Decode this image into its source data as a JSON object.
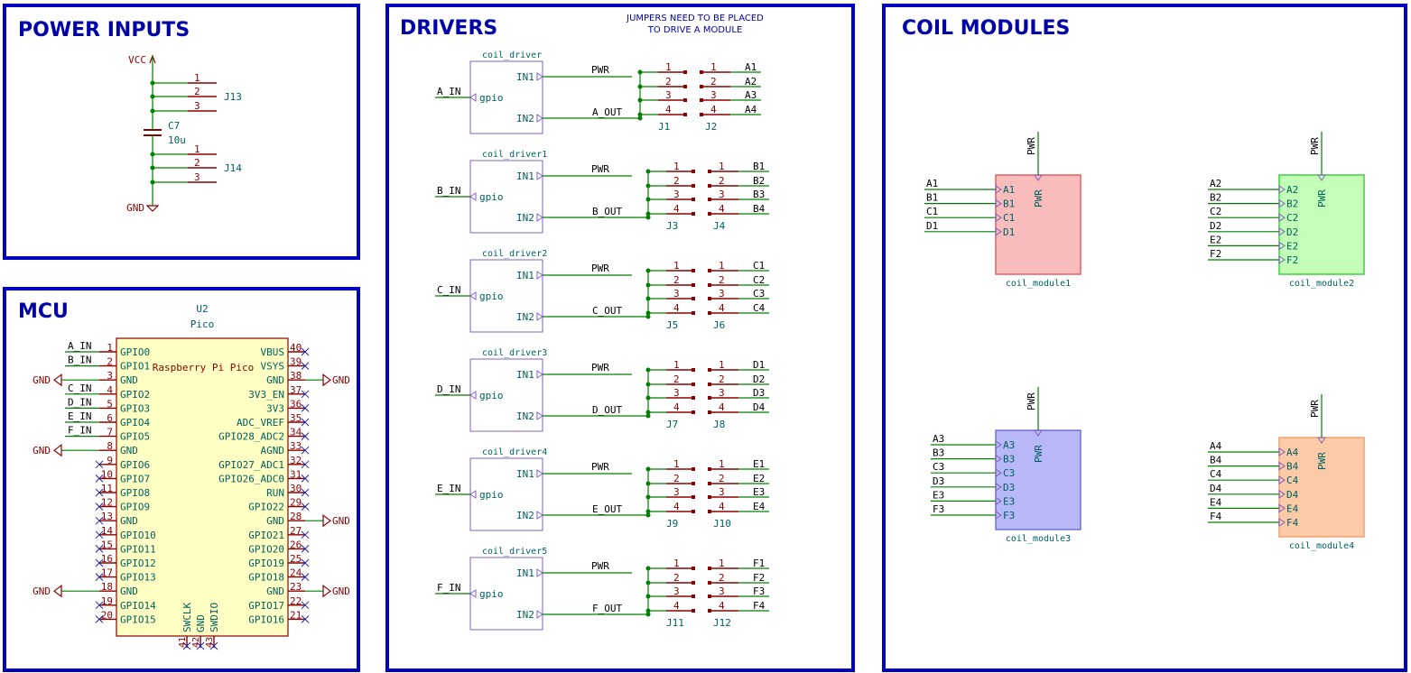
{
  "sections": {
    "power": {
      "title": "POWER INPUTS",
      "vcc": "VCC",
      "gnd": "GND",
      "cap_ref": "C7",
      "cap_val": "10u",
      "j13": "J13",
      "j14": "J14",
      "pins": [
        "1",
        "2",
        "3"
      ]
    },
    "mcu": {
      "title": "MCU",
      "ref": "U2",
      "value": "Pico",
      "part": "Raspberry Pi Pico",
      "gnd": "GND",
      "left_pins": [
        {
          "num": "1",
          "name": "GPIO0",
          "net": "A_IN"
        },
        {
          "num": "2",
          "name": "GPIO1",
          "net": "B_IN"
        },
        {
          "num": "3",
          "name": "GND",
          "net": "GND"
        },
        {
          "num": "4",
          "name": "GPIO2",
          "net": "C_IN"
        },
        {
          "num": "5",
          "name": "GPIO3",
          "net": "D_IN"
        },
        {
          "num": "6",
          "name": "GPIO4",
          "net": "E_IN"
        },
        {
          "num": "7",
          "name": "GPIO5",
          "net": "F_IN"
        },
        {
          "num": "8",
          "name": "GND",
          "net": "GND"
        },
        {
          "num": "9",
          "name": "GPIO6",
          "net": ""
        },
        {
          "num": "10",
          "name": "GPIO7",
          "net": ""
        },
        {
          "num": "11",
          "name": "GPIO8",
          "net": ""
        },
        {
          "num": "12",
          "name": "GPIO9",
          "net": ""
        },
        {
          "num": "13",
          "name": "GND",
          "net": ""
        },
        {
          "num": "14",
          "name": "GPIO10",
          "net": ""
        },
        {
          "num": "15",
          "name": "GPIO11",
          "net": ""
        },
        {
          "num": "16",
          "name": "GPIO12",
          "net": ""
        },
        {
          "num": "17",
          "name": "GPIO13",
          "net": ""
        },
        {
          "num": "18",
          "name": "GND",
          "net": "GND"
        },
        {
          "num": "19",
          "name": "GPIO14",
          "net": ""
        },
        {
          "num": "20",
          "name": "GPIO15",
          "net": ""
        }
      ],
      "right_pins": [
        {
          "num": "40",
          "name": "VBUS",
          "net": ""
        },
        {
          "num": "39",
          "name": "VSYS",
          "net": ""
        },
        {
          "num": "38",
          "name": "GND",
          "net": "GND"
        },
        {
          "num": "37",
          "name": "3V3_EN",
          "net": ""
        },
        {
          "num": "36",
          "name": "3V3",
          "net": ""
        },
        {
          "num": "35",
          "name": "ADC_VREF",
          "net": ""
        },
        {
          "num": "34",
          "name": "GPIO28_ADC2",
          "net": ""
        },
        {
          "num": "33",
          "name": "AGND",
          "net": ""
        },
        {
          "num": "32",
          "name": "GPIO27_ADC1",
          "net": ""
        },
        {
          "num": "31",
          "name": "GPIO26_ADC0",
          "net": ""
        },
        {
          "num": "30",
          "name": "RUN",
          "net": ""
        },
        {
          "num": "29",
          "name": "GPIO22",
          "net": ""
        },
        {
          "num": "28",
          "name": "GND",
          "net": "GND"
        },
        {
          "num": "27",
          "name": "GPIO21",
          "net": ""
        },
        {
          "num": "26",
          "name": "GPIO20",
          "net": ""
        },
        {
          "num": "25",
          "name": "GPIO19",
          "net": ""
        },
        {
          "num": "24",
          "name": "GPIO18",
          "net": ""
        },
        {
          "num": "23",
          "name": "GND",
          "net": "GND"
        },
        {
          "num": "22",
          "name": "GPIO17",
          "net": ""
        },
        {
          "num": "21",
          "name": "GPIO16",
          "net": ""
        }
      ],
      "bottom_pins": [
        {
          "num": "41",
          "name": "SWCLK"
        },
        {
          "num": "42",
          "name": "GND"
        },
        {
          "num": "43",
          "name": "SWDIO"
        }
      ]
    },
    "drivers": {
      "title": "DRIVERS",
      "note1": "JUMPERS NEED TO BE PLACED",
      "note2": "TO DRIVE A MODULE",
      "pin_in1": "IN1",
      "pin_in2": "IN2",
      "pin_gpio": "gpio",
      "pwr": "PWR",
      "pins": [
        "1",
        "2",
        "3",
        "4"
      ],
      "items": [
        {
          "name": "coil_driver",
          "in": "A_IN",
          "out": "A_OUT",
          "ja": "J1",
          "jb": "J2",
          "nets": [
            "A1",
            "A2",
            "A3",
            "A4"
          ]
        },
        {
          "name": "coil_driver1",
          "in": "B_IN",
          "out": "B_OUT",
          "ja": "J3",
          "jb": "J4",
          "nets": [
            "B1",
            "B2",
            "B3",
            "B4"
          ]
        },
        {
          "name": "coil_driver2",
          "in": "C_IN",
          "out": "C_OUT",
          "ja": "J5",
          "jb": "J6",
          "nets": [
            "C1",
            "C2",
            "C3",
            "C4"
          ]
        },
        {
          "name": "coil_driver3",
          "in": "D_IN",
          "out": "D_OUT",
          "ja": "J7",
          "jb": "J8",
          "nets": [
            "D1",
            "D2",
            "D3",
            "D4"
          ]
        },
        {
          "name": "coil_driver4",
          "in": "E_IN",
          "out": "E_OUT",
          "ja": "J9",
          "jb": "J10",
          "nets": [
            "E1",
            "E2",
            "E3",
            "E4"
          ]
        },
        {
          "name": "coil_driver5",
          "in": "F_IN",
          "out": "F_OUT",
          "ja": "J11",
          "jb": "J12",
          "nets": [
            "F1",
            "F2",
            "F3",
            "F4"
          ]
        }
      ]
    },
    "modules": {
      "title": "COIL MODULES",
      "pwr": "PWR",
      "items": [
        {
          "name": "coil_module1",
          "color": "#f9bcbc",
          "stroke": "#e06060",
          "nets": [
            "A1",
            "B1",
            "C1",
            "D1"
          ]
        },
        {
          "name": "coil_module2",
          "color": "#c4ffb8",
          "stroke": "#40d040",
          "nets": [
            "A2",
            "B2",
            "C2",
            "D2",
            "E2",
            "F2"
          ]
        },
        {
          "name": "coil_module3",
          "color": "#b8b8f8",
          "stroke": "#7070d0",
          "nets": [
            "A3",
            "B3",
            "C3",
            "D3",
            "E3",
            "F3"
          ]
        },
        {
          "name": "coil_module4",
          "color": "#fccaa6",
          "stroke": "#f0a070",
          "nets": [
            "A4",
            "B4",
            "C4",
            "D4",
            "E4",
            "F4"
          ]
        }
      ]
    }
  }
}
